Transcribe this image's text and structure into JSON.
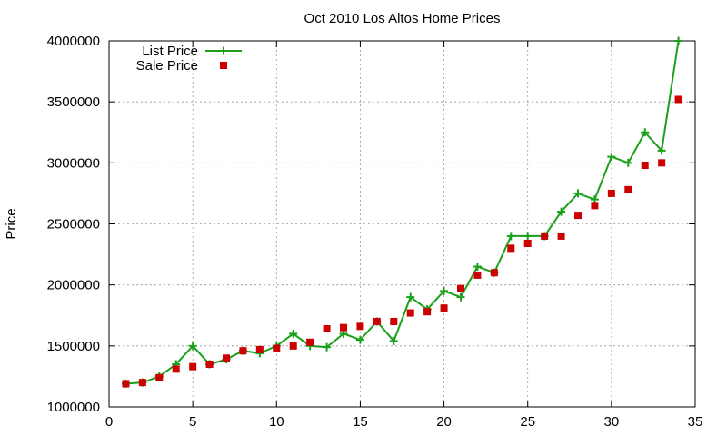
{
  "chart_data": {
    "type": "line",
    "title": "Oct 2010 Los Altos Home Prices",
    "xlabel": "",
    "ylabel": "Price",
    "xlim": [
      0,
      35
    ],
    "ylim": [
      1000000,
      4000000
    ],
    "xticks": [
      0,
      5,
      10,
      15,
      20,
      25,
      30,
      35
    ],
    "yticks": [
      1000000,
      1500000,
      2000000,
      2500000,
      3000000,
      3500000,
      4000000
    ],
    "grid": true,
    "legend_position": "top-left",
    "series": [
      {
        "name": "List Price",
        "style": "line-with-plus-markers",
        "color": "#1aa01a",
        "x": [
          1,
          2,
          3,
          4,
          5,
          6,
          7,
          8,
          9,
          10,
          11,
          12,
          13,
          14,
          15,
          16,
          17,
          18,
          19,
          20,
          21,
          22,
          23,
          24,
          25,
          26,
          27,
          28,
          29,
          30,
          31,
          32,
          33,
          34
        ],
        "y": [
          1190000,
          1200000,
          1250000,
          1350000,
          1500000,
          1350000,
          1390000,
          1460000,
          1440000,
          1500000,
          1600000,
          1500000,
          1490000,
          1600000,
          1550000,
          1700000,
          1540000,
          1900000,
          1800000,
          1950000,
          1900000,
          2150000,
          2100000,
          2400000,
          2400000,
          2400000,
          2600000,
          2750000,
          2700000,
          3050000,
          3000000,
          3250000,
          3100000,
          4000000
        ]
      },
      {
        "name": "Sale Price",
        "style": "square-markers",
        "color": "#cc0000",
        "x": [
          1,
          2,
          3,
          4,
          5,
          6,
          7,
          8,
          9,
          10,
          11,
          12,
          13,
          14,
          15,
          16,
          17,
          18,
          19,
          20,
          21,
          22,
          23,
          24,
          25,
          26,
          27,
          28,
          29,
          30,
          31,
          32,
          33,
          34
        ],
        "y": [
          1190000,
          1200000,
          1240000,
          1310000,
          1330000,
          1350000,
          1400000,
          1460000,
          1470000,
          1480000,
          1500000,
          1530000,
          1640000,
          1650000,
          1660000,
          1700000,
          1700000,
          1770000,
          1780000,
          1810000,
          1970000,
          2080000,
          2100000,
          2300000,
          2340000,
          2400000,
          2400000,
          2570000,
          2650000,
          2750000,
          2780000,
          2980000,
          3000000,
          3520000
        ]
      }
    ]
  }
}
